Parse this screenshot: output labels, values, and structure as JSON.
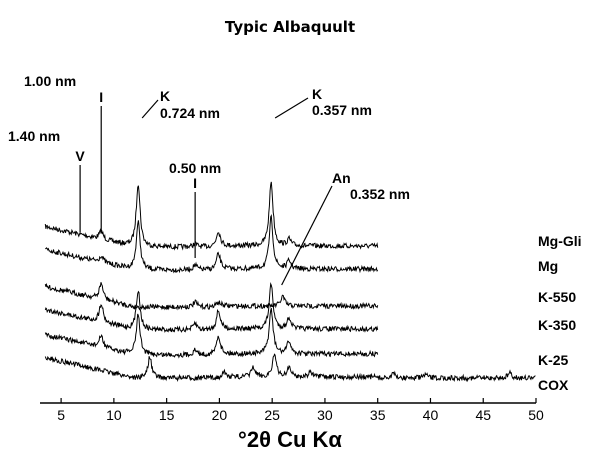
{
  "chart_data": {
    "type": "line",
    "title": "Typic Albaquult",
    "xlabel": "°2θ Cu Kα",
    "ylabel": "",
    "xlim": [
      3,
      50
    ],
    "xticks": [
      5,
      10,
      15,
      20,
      25,
      30,
      35,
      40,
      45,
      50
    ],
    "grid": false,
    "legend": "right",
    "annotations": [
      {
        "lines": [
          "1.00 nm",
          "I"
        ],
        "x": 8.8
      },
      {
        "lines": [
          "1.40 nm",
          "V"
        ],
        "x": 6.8
      },
      {
        "lines": [
          "K",
          "0.724 nm"
        ],
        "x": 12.3
      },
      {
        "lines": [
          "K",
          "0.357 nm"
        ],
        "x": 24.9
      },
      {
        "lines": [
          "0.50 nm",
          "I"
        ],
        "x": 17.7
      },
      {
        "lines": [
          "An",
          "0.352 nm"
        ],
        "x": 25.9
      }
    ],
    "series": [
      {
        "name": "Mg-Gli",
        "x_end": 35,
        "peaks": [
          [
            8.8,
            0.5
          ],
          [
            12.3,
            4.0
          ],
          [
            17.7,
            0.2
          ],
          [
            19.9,
            1.0
          ],
          [
            24.9,
            4.0
          ],
          [
            26.6,
            0.4
          ]
        ]
      },
      {
        "name": "Mg",
        "x_end": 35,
        "peaks": [
          [
            8.8,
            0.4
          ],
          [
            12.3,
            3.0
          ],
          [
            17.7,
            0.3
          ],
          [
            19.9,
            1.0
          ],
          [
            24.9,
            3.2
          ],
          [
            26.6,
            0.5
          ]
        ]
      },
      {
        "name": "K-550",
        "x_end": 35,
        "peaks": [
          [
            8.8,
            1.0
          ],
          [
            17.7,
            0.3
          ],
          [
            19.9,
            0.3
          ],
          [
            26.0,
            0.6
          ]
        ]
      },
      {
        "name": "K-350",
        "x_end": 35,
        "peaks": [
          [
            8.8,
            1.2
          ],
          [
            12.3,
            2.5
          ],
          [
            17.7,
            0.4
          ],
          [
            19.9,
            1.2
          ],
          [
            24.9,
            2.8
          ],
          [
            26.6,
            0.7
          ]
        ]
      },
      {
        "name": "K-25",
        "x_end": 35,
        "peaks": [
          [
            8.8,
            0.7
          ],
          [
            12.3,
            2.5
          ],
          [
            17.7,
            0.3
          ],
          [
            19.9,
            1.2
          ],
          [
            24.9,
            2.8
          ],
          [
            26.6,
            0.8
          ]
        ]
      },
      {
        "name": "COX",
        "x_end": 50,
        "peaks": [
          [
            13.4,
            1.3
          ],
          [
            20.4,
            0.3
          ],
          [
            23.2,
            0.6
          ],
          [
            25.2,
            1.4
          ],
          [
            26.6,
            0.6
          ],
          [
            28.6,
            0.3
          ],
          [
            36.5,
            0.25
          ],
          [
            39.5,
            0.2
          ],
          [
            47.5,
            0.3
          ]
        ]
      }
    ]
  }
}
